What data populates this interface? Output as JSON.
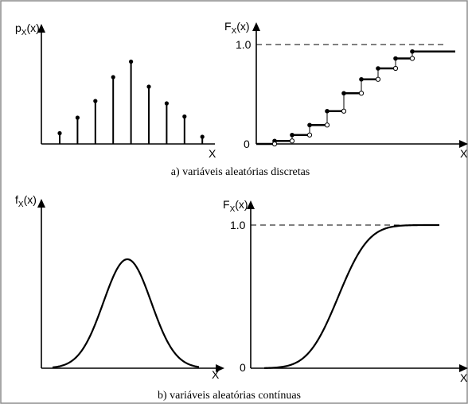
{
  "panel_a": {
    "caption": "a) variáveis aleatórias discretas",
    "pmf": {
      "ylabel_main": "p",
      "ylabel_sub": "X",
      "ylabel_arg": "(x)",
      "xlabel": "X"
    },
    "cdf": {
      "ylabel_main": "F",
      "ylabel_sub": "X",
      "ylabel_arg": "(x)",
      "xlabel": "X",
      "tick_top": "1.0",
      "tick_zero": "0"
    }
  },
  "panel_b": {
    "caption": "b) variáveis aleatórias contínuas",
    "pdf": {
      "ylabel_main": "f",
      "ylabel_sub": "X",
      "ylabel_arg": "(x)",
      "xlabel": "X"
    },
    "cdf": {
      "ylabel_main": "F",
      "ylabel_sub": "X",
      "ylabel_arg": "(x)",
      "xlabel": "X",
      "tick_top": "1.0",
      "tick_zero": "0"
    }
  },
  "chart_data": [
    {
      "type": "bar",
      "subtype": "stem",
      "ylabel": "pX(x)",
      "xlabel": "X",
      "values": [
        0.09,
        0.22,
        0.36,
        0.56,
        0.69,
        0.48,
        0.34,
        0.23,
        0.06
      ]
    },
    {
      "type": "line",
      "subtype": "step",
      "ylabel": "FX(x)",
      "xlabel": "X",
      "ylim": [
        0,
        1
      ],
      "values": [
        0.03,
        0.09,
        0.19,
        0.33,
        0.51,
        0.65,
        0.76,
        0.86,
        0.93,
        1.0
      ],
      "marked_levels": [
        "0",
        "1.0"
      ]
    },
    {
      "type": "line",
      "subtype": "bell-curve",
      "ylabel": "fX(x)",
      "xlabel": "X"
    },
    {
      "type": "line",
      "subtype": "s-curve",
      "ylabel": "FX(x)",
      "xlabel": "X",
      "ylim": [
        0,
        1
      ],
      "marked_levels": [
        "0",
        "1.0"
      ]
    }
  ]
}
